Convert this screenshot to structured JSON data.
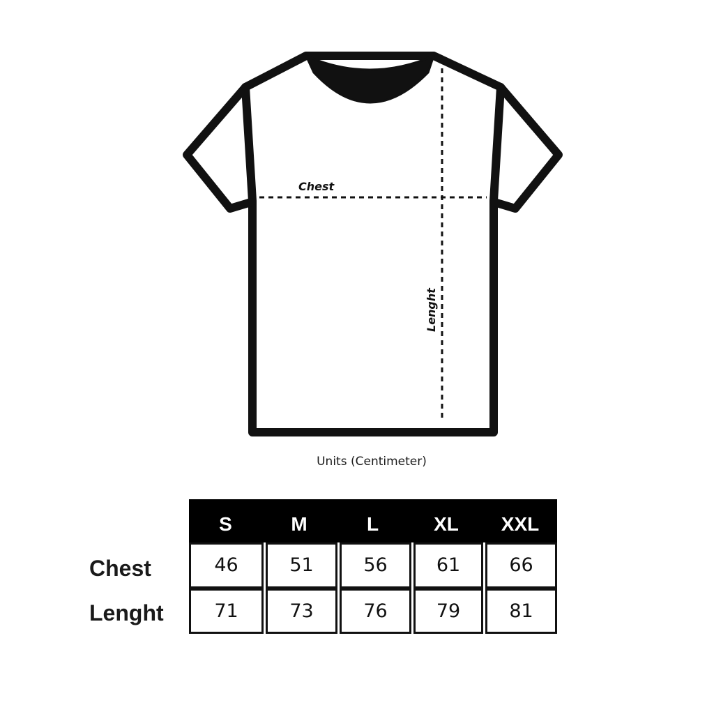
{
  "diagram": {
    "chest_label": "Chest",
    "length_label": "Lenght",
    "units_caption": "Units (Centimeter)"
  },
  "table": {
    "sizes": [
      "S",
      "M",
      "L",
      "XL",
      "XXL"
    ],
    "rows": [
      {
        "label": "Chest",
        "values": [
          "46",
          "51",
          "56",
          "61",
          "66"
        ]
      },
      {
        "label": "Lenght",
        "values": [
          "71",
          "73",
          "76",
          "79",
          "81"
        ]
      }
    ]
  }
}
